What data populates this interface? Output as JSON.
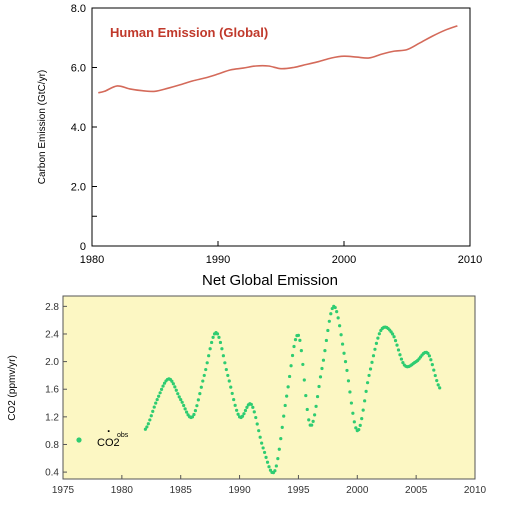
{
  "chart_data": [
    {
      "type": "line",
      "title": "Human Emission (Global)",
      "xlabel": "",
      "ylabel": "Carbon Emission (GtC/yr)",
      "xlim": [
        1980,
        2010
      ],
      "ylim": [
        0,
        8.0
      ],
      "x_ticks": [
        "1980",
        "1990",
        "2000",
        "2010"
      ],
      "y_ticks": [
        "0",
        "2.0",
        "4.0",
        "6.0",
        "8.0"
      ],
      "y_minor_tick": 1.0,
      "grid": false,
      "title_color": "#c0392b",
      "line_color": "#d46a5a",
      "series": [
        {
          "x": [
            1980.5,
            1981,
            1982,
            1983,
            1984,
            1985,
            1986,
            1987,
            1988,
            1989,
            1990,
            1991,
            1992,
            1993,
            1994,
            1995,
            1996,
            1997,
            1998,
            1999,
            2000,
            2001,
            2002,
            2003,
            2004,
            2005,
            2006,
            2007,
            2008,
            2009
          ],
          "values": [
            5.15,
            5.2,
            5.38,
            5.28,
            5.22,
            5.2,
            5.3,
            5.42,
            5.55,
            5.65,
            5.78,
            5.92,
            5.98,
            6.05,
            6.05,
            5.96,
            6.0,
            6.1,
            6.2,
            6.32,
            6.38,
            6.35,
            6.32,
            6.45,
            6.55,
            6.6,
            6.82,
            7.05,
            7.25,
            7.4
          ]
        }
      ]
    },
    {
      "type": "scatter",
      "title": "Net Global Emission",
      "xlabel": "",
      "ylabel": "CO2 (ppmv/yr)",
      "xlim": [
        1975,
        2010
      ],
      "ylim": [
        0.3,
        2.95
      ],
      "x_ticks": [
        "1975",
        "1980",
        "1985",
        "1990",
        "1995",
        "2000",
        "2005",
        "2010"
      ],
      "y_ticks": [
        "0.4",
        "0.8",
        "1.2",
        "1.6",
        "2.0",
        "2.4",
        "2.8"
      ],
      "background": "#fcf7c3",
      "marker_color": "#2ecc71",
      "legend": {
        "position": "lower-left",
        "label": "CO2",
        "superscript": "obs",
        "dot_label": "."
      },
      "series": [
        {
          "name": "CO2obs",
          "x": [
            1982,
            1983,
            1984,
            1985,
            1986,
            1987,
            1988,
            1989,
            1990,
            1991,
            1992,
            1993,
            1994,
            1995,
            1996,
            1997,
            1998,
            1999,
            2000,
            2001,
            2002,
            2003,
            2004,
            2005,
            2006,
            2007
          ],
          "values": [
            1.02,
            1.45,
            1.75,
            1.45,
            1.2,
            1.8,
            2.42,
            1.8,
            1.2,
            1.38,
            0.75,
            0.42,
            1.5,
            2.38,
            1.08,
            1.9,
            2.8,
            2.0,
            1.0,
            1.8,
            2.45,
            2.4,
            1.95,
            2.0,
            2.12,
            1.62
          ]
        }
      ]
    }
  ]
}
